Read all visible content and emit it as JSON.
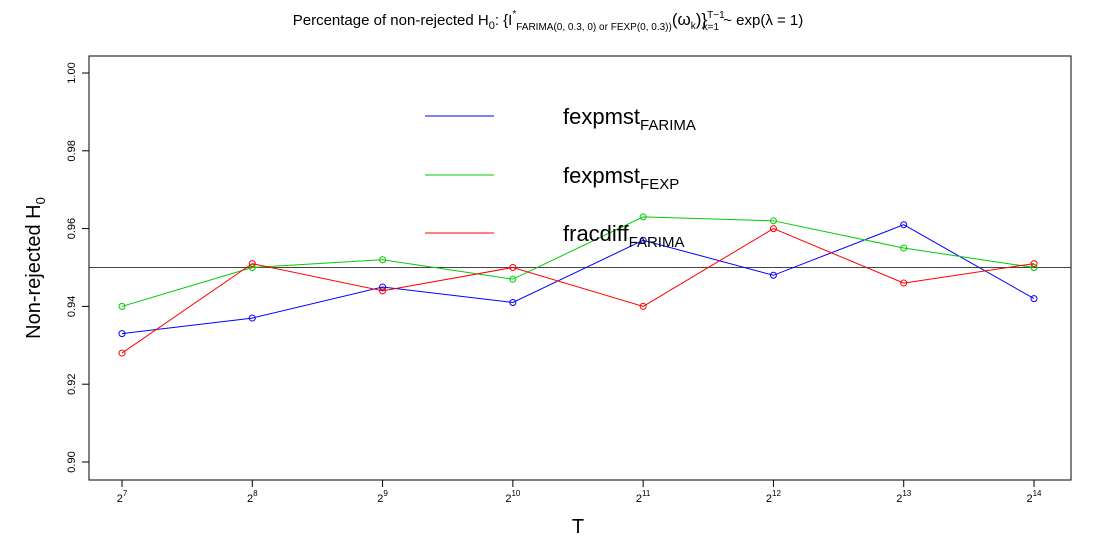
{
  "chart_data": {
    "type": "line",
    "title": {
      "prefix": "Percentage of non-rejected H",
      "prefix_sub": "0",
      "middle": ":  {I",
      "i_sup": "*",
      "i_sub": "FARIMA(0, 0.3, 0)  or  FEXP(0, 0.3))",
      "omega": "(ω",
      "omega_sub": "k",
      "omega_close": ")}",
      "set_sup": "T−1",
      "set_sub": "k=1",
      "suffix": " ~ exp(λ = 1)"
    },
    "xlabel": "T",
    "ylabel": {
      "main": "Non-rejected H",
      "sub": "0"
    },
    "x_exponents": [
      7,
      8,
      9,
      10,
      11,
      12,
      13,
      14
    ],
    "x_tick_base": "2",
    "y_ticks": [
      "0.90",
      "0.92",
      "0.94",
      "0.96",
      "0.98",
      "1.00"
    ],
    "ylim": [
      0.9,
      1.0
    ],
    "reference_line": 0.95,
    "legend_position": "top-center",
    "series": [
      {
        "name": "fexpmst",
        "name_sub": "FARIMA",
        "color": "#0000ff",
        "values": [
          0.933,
          0.937,
          0.945,
          0.941,
          0.957,
          0.948,
          0.961,
          0.942
        ]
      },
      {
        "name": "fexpmst",
        "name_sub": "FEXP",
        "color": "#00cc00",
        "values": [
          0.94,
          0.95,
          0.952,
          0.947,
          0.963,
          0.962,
          0.955,
          0.95
        ]
      },
      {
        "name": "fracdiff",
        "name_sub": "FARIMA",
        "color": "#ff0000",
        "values": [
          0.928,
          0.951,
          0.944,
          0.95,
          0.94,
          0.96,
          0.946,
          0.951
        ]
      }
    ]
  }
}
